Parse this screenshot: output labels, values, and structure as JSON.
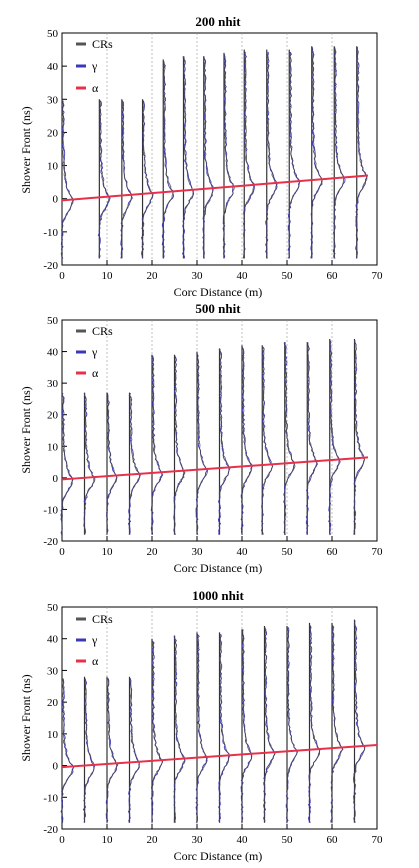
{
  "chart_data": [
    {
      "type": "line",
      "title": "200 nhit",
      "xlabel": "Corc Distance (m)",
      "ylabel": "Shower Front (ns)",
      "xlim": [
        0,
        70
      ],
      "ylim": [
        -20,
        50
      ],
      "xticks": [
        "0",
        "10",
        "20",
        "30",
        "40",
        "50",
        "60",
        "70"
      ],
      "yticks": [
        "-20",
        "-10",
        "0",
        "10",
        "20",
        "30",
        "40",
        "50"
      ],
      "grid": "vertical-dashed",
      "legend": "top-left",
      "legend_entries": [
        {
          "label": "CRs",
          "color": "#555555"
        },
        {
          "label": "γ",
          "color": "#3a3ab8"
        },
        {
          "label": "α",
          "color": "#e8304a"
        }
      ],
      "profiles": [
        {
          "x": 0,
          "peak": 30
        },
        {
          "x": 8.3,
          "peak": 30
        },
        {
          "x": 13.3,
          "peak": 30
        },
        {
          "x": 17.9,
          "peak": 30
        },
        {
          "x": 22.5,
          "peak": 42
        },
        {
          "x": 27,
          "peak": 43
        },
        {
          "x": 31.5,
          "peak": 43
        },
        {
          "x": 36,
          "peak": 44
        },
        {
          "x": 40.5,
          "peak": 45
        },
        {
          "x": 45.5,
          "peak": 45
        },
        {
          "x": 50.5,
          "peak": 45
        },
        {
          "x": 55.5,
          "peak": 46
        },
        {
          "x": 60.5,
          "peak": 46
        },
        {
          "x": 65.5,
          "peak": 46
        }
      ],
      "line": {
        "x": [
          0,
          68
        ],
        "y": [
          -0.5,
          7
        ]
      }
    },
    {
      "type": "line",
      "title": "500 nhit",
      "xlabel": "Corc Distance (m)",
      "ylabel": "Shower Front (ns)",
      "xlim": [
        0,
        70
      ],
      "ylim": [
        -20,
        50
      ],
      "xticks": [
        "0",
        "10",
        "20",
        "30",
        "40",
        "50",
        "60",
        "70"
      ],
      "yticks": [
        "-20",
        "-10",
        "0",
        "10",
        "20",
        "30",
        "40",
        "50"
      ],
      "grid": "vertical-dashed",
      "legend": "top-left",
      "legend_entries": [
        {
          "label": "CRs",
          "color": "#555555"
        },
        {
          "label": "γ",
          "color": "#3a3ab8"
        },
        {
          "label": "α",
          "color": "#e8304a"
        }
      ],
      "profiles": [
        {
          "x": 0,
          "peak": 27
        },
        {
          "x": 5,
          "peak": 27
        },
        {
          "x": 10,
          "peak": 27
        },
        {
          "x": 15,
          "peak": 27
        },
        {
          "x": 20,
          "peak": 39
        },
        {
          "x": 25,
          "peak": 39
        },
        {
          "x": 30,
          "peak": 40
        },
        {
          "x": 35,
          "peak": 41
        },
        {
          "x": 40,
          "peak": 42
        },
        {
          "x": 44.5,
          "peak": 42
        },
        {
          "x": 49.5,
          "peak": 43
        },
        {
          "x": 54.5,
          "peak": 43
        },
        {
          "x": 59.5,
          "peak": 44
        },
        {
          "x": 65,
          "peak": 44
        }
      ],
      "line": {
        "x": [
          0,
          68
        ],
        "y": [
          -0.5,
          6.5
        ]
      }
    },
    {
      "type": "line",
      "title": "1000 nhit",
      "xlabel": "Corc Distance (m)",
      "ylabel": "Shower Front (ns)",
      "xlim": [
        0,
        70
      ],
      "ylim": [
        -20,
        50
      ],
      "xticks": [
        "0",
        "10",
        "20",
        "30",
        "40",
        "50",
        "60",
        "70"
      ],
      "yticks": [
        "-20",
        "-10",
        "0",
        "10",
        "20",
        "30",
        "40",
        "50"
      ],
      "grid": "vertical-dashed",
      "legend": "top-left",
      "legend_entries": [
        {
          "label": "CRs",
          "color": "#555555"
        },
        {
          "label": "γ",
          "color": "#3a3ab8"
        },
        {
          "label": "α",
          "color": "#e8304a"
        }
      ],
      "profiles": [
        {
          "x": 0,
          "peak": 28
        },
        {
          "x": 5,
          "peak": 28
        },
        {
          "x": 10,
          "peak": 28
        },
        {
          "x": 15,
          "peak": 28
        },
        {
          "x": 20,
          "peak": 40
        },
        {
          "x": 25,
          "peak": 41
        },
        {
          "x": 30,
          "peak": 42
        },
        {
          "x": 35,
          "peak": 42
        },
        {
          "x": 40,
          "peak": 43
        },
        {
          "x": 45,
          "peak": 44
        },
        {
          "x": 50,
          "peak": 44
        },
        {
          "x": 55,
          "peak": 45
        },
        {
          "x": 60,
          "peak": 45
        },
        {
          "x": 65,
          "peak": 46
        }
      ],
      "line": {
        "x": [
          0,
          70
        ],
        "y": [
          -0.5,
          6.5
        ]
      }
    }
  ]
}
